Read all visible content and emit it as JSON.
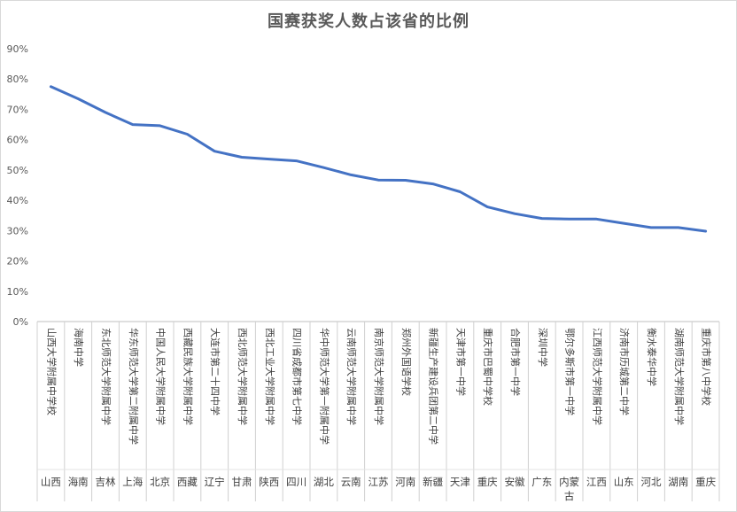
{
  "chart_data": {
    "type": "line",
    "title": "国赛获奖人数占该省的比例",
    "xlabel": "",
    "ylabel": "",
    "ylim": [
      0,
      90
    ],
    "y_ticks": [
      "0%",
      "10%",
      "20%",
      "30%",
      "40%",
      "50%",
      "60%",
      "70%",
      "80%",
      "90%"
    ],
    "grid": false,
    "legend": "none",
    "line_color": "#4472c4",
    "categories": [
      {
        "school": "山西大学附属中学校",
        "province": "山西"
      },
      {
        "school": "海南中学",
        "province": "海南"
      },
      {
        "school": "东北师范大学附属中学",
        "province": "吉林"
      },
      {
        "school": "华东师范大学第二附属中学",
        "province": "上海"
      },
      {
        "school": "中国人民大学附属中学",
        "province": "北京"
      },
      {
        "school": "西藏民族大学附属中学",
        "province": "西藏"
      },
      {
        "school": "大连市第二十四中学",
        "province": "辽宁"
      },
      {
        "school": "西北师范大学附属中学",
        "province": "甘肃"
      },
      {
        "school": "西北工业大学附属中学",
        "province": "陕西"
      },
      {
        "school": "四川省成都市第七中学",
        "province": "四川"
      },
      {
        "school": "华中师范大学第一附属中学",
        "province": "湖北"
      },
      {
        "school": "云南师范大学附属中学",
        "province": "云南"
      },
      {
        "school": "南京师范大学附属中学",
        "province": "江苏"
      },
      {
        "school": "郑州外国语学校",
        "province": "河南"
      },
      {
        "school": "新疆生产建设兵团第二中学",
        "province": "新疆"
      },
      {
        "school": "天津市第一中学",
        "province": "天津"
      },
      {
        "school": "重庆市巴蜀中学校",
        "province": "重庆"
      },
      {
        "school": "合肥市第一中学",
        "province": "安徽"
      },
      {
        "school": "深圳中学",
        "province": "广东"
      },
      {
        "school": "鄂尔多斯市第一中学",
        "province": "内蒙古"
      },
      {
        "school": "江西师范大学附属中学",
        "province": "江西"
      },
      {
        "school": "济南市历城第二中学",
        "province": "山东"
      },
      {
        "school": "衡水泰华中学",
        "province": "河北"
      },
      {
        "school": "湖南师范大学附属中学",
        "province": "湖南"
      },
      {
        "school": "重庆市第八中学校",
        "province": "重庆"
      }
    ],
    "series": [
      {
        "values": [
          77.5,
          73.5,
          69.0,
          65.0,
          64.6,
          61.8,
          56.2,
          54.2,
          53.6,
          53.0,
          50.8,
          48.4,
          46.7,
          46.6,
          45.4,
          42.8,
          37.8,
          35.6,
          34.0,
          33.8,
          33.8,
          32.4,
          31.0,
          31.0,
          29.8
        ]
      }
    ]
  }
}
